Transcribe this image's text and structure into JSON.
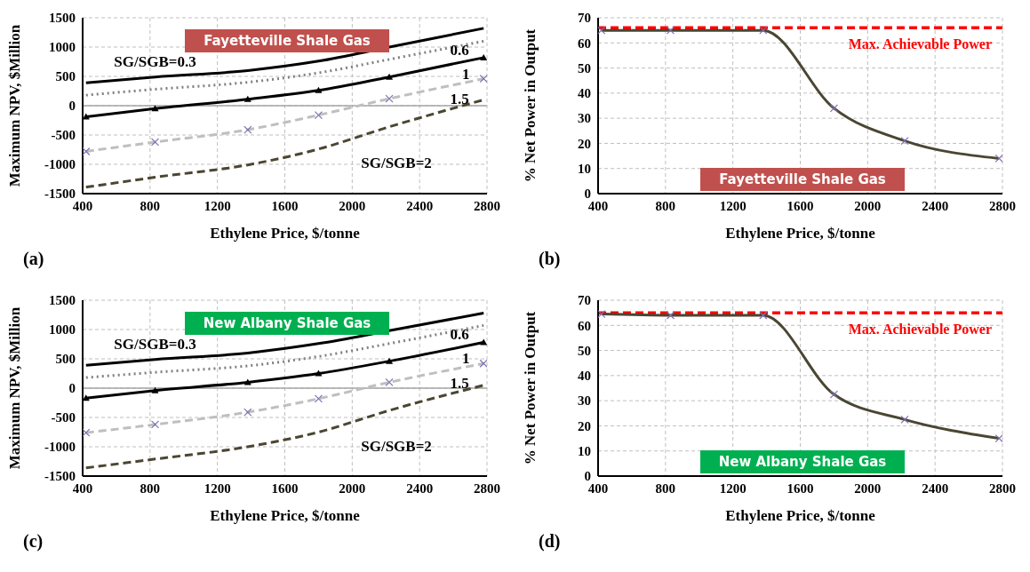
{
  "chart_data": [
    {
      "type": "line",
      "title": "Fayetteville Shale Gas",
      "xlabel": "Ethylene Price, $/tonne",
      "ylabel": "Maximum  NPV, $Million",
      "x": [
        420,
        830,
        1380,
        1800,
        2220,
        2780
      ],
      "xlim": [
        400,
        2800
      ],
      "xticks": [
        400,
        800,
        1200,
        1600,
        2000,
        2400,
        2800
      ],
      "ylim": [
        -1500,
        1500
      ],
      "yticks": [
        -1500,
        -1000,
        -500,
        0,
        500,
        1000,
        1500
      ],
      "grid": true,
      "series": [
        {
          "name": "SG/SGB=0.3",
          "color": "#000000",
          "line_style": "solid",
          "marker": "none",
          "values": [
            390,
            490,
            600,
            760,
            1000,
            1320
          ]
        },
        {
          "name": "0.6",
          "color": "#808080",
          "line_style": "dotted",
          "marker": "none",
          "values": [
            180,
            280,
            400,
            560,
            790,
            1100
          ]
        },
        {
          "name": "1",
          "color": "#000000",
          "line_style": "solid",
          "marker": "triangle",
          "values": [
            -190,
            -50,
            110,
            260,
            490,
            820
          ]
        },
        {
          "name": "1.5",
          "color": "#bfbfbf",
          "line_style": "dashed",
          "marker": "cross",
          "values": [
            -780,
            -620,
            -410,
            -160,
            120,
            460
          ]
        },
        {
          "name": "SG/SGB=2",
          "color": "#4a4632",
          "line_style": "dashed",
          "marker": "none",
          "values": [
            -1390,
            -1220,
            -1010,
            -740,
            -360,
            100
          ]
        }
      ],
      "ref_lines": [
        {
          "axis": "y",
          "value": 0,
          "color": "#a6a6a6"
        }
      ],
      "annotations": [
        "(a)"
      ]
    },
    {
      "type": "line",
      "title": "Fayetteville Shale Gas",
      "xlabel": "Ethylene Price, $/tonne",
      "ylabel": "% Net Power in Output",
      "x": [
        420,
        830,
        1380,
        1800,
        2220,
        2780
      ],
      "xlim": [
        400,
        2800
      ],
      "xticks": [
        400,
        800,
        1200,
        1600,
        2000,
        2400,
        2800
      ],
      "ylim": [
        0,
        70
      ],
      "yticks": [
        0,
        10,
        20,
        30,
        40,
        50,
        60,
        70
      ],
      "grid": true,
      "series": [
        {
          "color": "#4a4632",
          "line_style": "solid",
          "marker": "cross",
          "values": [
            65,
            65,
            65,
            34,
            21,
            14
          ]
        }
      ],
      "ref_lines": [
        {
          "axis": "y",
          "value": 66,
          "label": "Max. Achievable Power",
          "color": "#ff0000",
          "line_style": "dashed"
        }
      ],
      "annotations": [
        "(b)"
      ]
    },
    {
      "type": "line",
      "title": "New Albany Shale Gas",
      "xlabel": "Ethylene Price, $/tonne",
      "ylabel": "Maximum  NPV, $Million",
      "x": [
        420,
        830,
        1380,
        1800,
        2220,
        2780
      ],
      "xlim": [
        400,
        2800
      ],
      "xticks": [
        400,
        800,
        1200,
        1600,
        2000,
        2400,
        2800
      ],
      "ylim": [
        -1500,
        1500
      ],
      "yticks": [
        -1500,
        -1000,
        -500,
        0,
        500,
        1000,
        1500
      ],
      "grid": true,
      "series": [
        {
          "name": "SG/SGB=0.3",
          "color": "#000000",
          "line_style": "solid",
          "marker": "none",
          "values": [
            390,
            490,
            600,
            760,
            980,
            1280
          ]
        },
        {
          "name": "0.6",
          "color": "#808080",
          "line_style": "dotted",
          "marker": "none",
          "values": [
            180,
            270,
            380,
            540,
            760,
            1070
          ]
        },
        {
          "name": "1",
          "color": "#000000",
          "line_style": "solid",
          "marker": "triangle",
          "values": [
            -170,
            -40,
            100,
            250,
            460,
            780
          ]
        },
        {
          "name": "1.5",
          "color": "#bfbfbf",
          "line_style": "dashed",
          "marker": "cross",
          "values": [
            -760,
            -620,
            -410,
            -180,
            100,
            420
          ]
        },
        {
          "name": "SG/SGB=2",
          "color": "#4a4632",
          "line_style": "dashed",
          "marker": "none",
          "values": [
            -1360,
            -1210,
            -1000,
            -750,
            -380,
            50
          ]
        }
      ],
      "ref_lines": [
        {
          "axis": "y",
          "value": 0,
          "color": "#a6a6a6"
        }
      ],
      "annotations": [
        "(c)"
      ]
    },
    {
      "type": "line",
      "title": "New Albany Shale Gas",
      "xlabel": "Ethylene Price, $/tonne",
      "ylabel": "% Net Power in Output",
      "x": [
        420,
        830,
        1380,
        1800,
        2220,
        2780
      ],
      "xlim": [
        400,
        2800
      ],
      "xticks": [
        400,
        800,
        1200,
        1600,
        2000,
        2400,
        2800
      ],
      "ylim": [
        0,
        70
      ],
      "yticks": [
        0,
        10,
        20,
        30,
        40,
        50,
        60,
        70
      ],
      "grid": true,
      "series": [
        {
          "color": "#4a4632",
          "line_style": "solid",
          "marker": "cross",
          "values": [
            64.5,
            64,
            64,
            32.5,
            22.5,
            15
          ]
        }
      ],
      "ref_lines": [
        {
          "axis": "y",
          "value": 65,
          "label": "Max. Achievable Power",
          "color": "#ff0000",
          "line_style": "dashed"
        }
      ],
      "annotations": [
        "(d)"
      ]
    }
  ]
}
